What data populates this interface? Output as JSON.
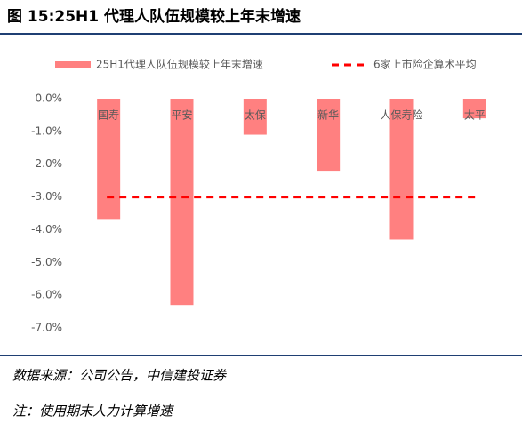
{
  "chart_data": {
    "type": "bar",
    "title": "图 15:25H1 代理人队伍规模较上年末增速",
    "categories": [
      "国寿",
      "平安",
      "太保",
      "新华",
      "人保寿险",
      "太平"
    ],
    "series": [
      {
        "name": "25H1代理人队伍规模较上年末增速",
        "color": "#ff8080",
        "values": [
          -3.7,
          -6.3,
          -1.1,
          -2.2,
          -4.3,
          -0.6
        ]
      }
    ],
    "reference_line": {
      "name": "6家上市险企算术平均",
      "color": "#ff0000",
      "value": -3.0
    },
    "ylim": [
      -7,
      0
    ],
    "yticks": [
      {
        "value": 0,
        "label": "0.0%"
      },
      {
        "value": -1,
        "label": "-1.0%"
      },
      {
        "value": -2,
        "label": "-2.0%"
      },
      {
        "value": -3,
        "label": "-3.0%"
      },
      {
        "value": -4,
        "label": "-4.0%"
      },
      {
        "value": -5,
        "label": "-5.0%"
      },
      {
        "value": -6,
        "label": "-6.0%"
      },
      {
        "value": -7,
        "label": "-7.0%"
      }
    ],
    "grid": false,
    "source": "数据来源：公司公告，中信建投证券",
    "note": "注：使用期末人力计算增速"
  }
}
